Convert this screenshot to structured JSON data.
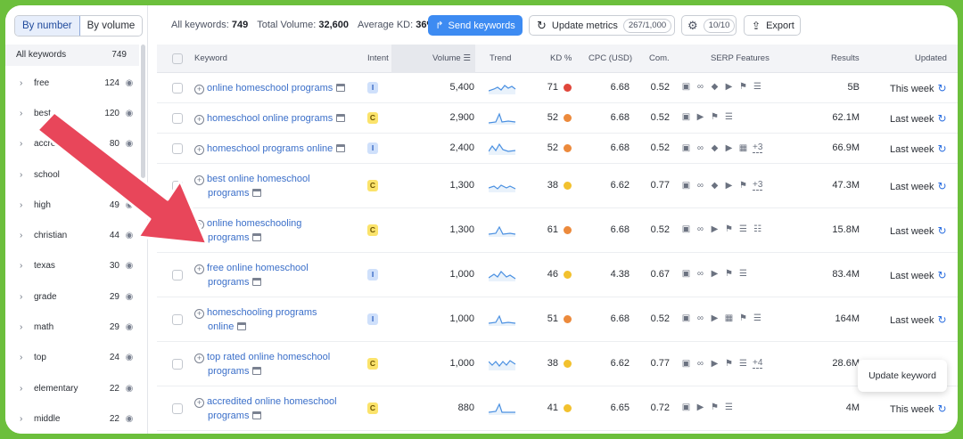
{
  "sidebar": {
    "toggle": [
      "By number",
      "By volume"
    ],
    "header_label": "All keywords",
    "header_count": "749",
    "items": [
      {
        "label": "free",
        "count": "124"
      },
      {
        "label": "best",
        "count": "120"
      },
      {
        "label": "accredited",
        "count": "80"
      },
      {
        "label": "school",
        "count": ""
      },
      {
        "label": "high",
        "count": "49"
      },
      {
        "label": "christian",
        "count": "44"
      },
      {
        "label": "texas",
        "count": "30"
      },
      {
        "label": "grade",
        "count": "29"
      },
      {
        "label": "math",
        "count": "29"
      },
      {
        "label": "top",
        "count": "24"
      },
      {
        "label": "elementary",
        "count": "22"
      },
      {
        "label": "middle",
        "count": "22"
      }
    ]
  },
  "topbar": {
    "all_keywords_label": "All keywords:",
    "all_keywords_value": "749",
    "total_volume_label": "Total Volume:",
    "total_volume_value": "32,600",
    "avg_kd_label": "Average KD:",
    "avg_kd_value": "36%",
    "send_label": "Send keywords",
    "update_label": "Update metrics",
    "update_badge": "267/1,000",
    "gear_badge": "10/10",
    "export_label": "Export"
  },
  "columns": [
    "Keyword",
    "Intent",
    "Volume",
    "Trend",
    "KD %",
    "CPC (USD)",
    "Com.",
    "SERP Features",
    "Results",
    "Updated"
  ],
  "colors": {
    "accent": "#3d8bf2",
    "frame": "#6cbf3c",
    "arrow": "#e8465a",
    "kd_red": "#e0473b",
    "kd_orange": "#ec8a3c",
    "kd_yellow": "#f2c12e"
  },
  "rows": [
    {
      "kw1": "online homeschool programs",
      "kw2": "",
      "intent": "I",
      "volume": "5,400",
      "kd": "71",
      "kd_color": "#e0473b",
      "cpc": "6.68",
      "com": "0.52",
      "serp": "square,link,diamond,play,flag,list",
      "more": "",
      "results": "5B",
      "updated": "This week"
    },
    {
      "kw1": "homeschool online programs",
      "kw2": "",
      "intent": "C",
      "volume": "2,900",
      "kd": "52",
      "kd_color": "#ec8a3c",
      "cpc": "6.68",
      "com": "0.52",
      "serp": "square,play,flag,list",
      "more": "",
      "results": "62.1M",
      "updated": "Last week"
    },
    {
      "kw1": "homeschool programs online",
      "kw2": "",
      "intent": "I",
      "volume": "2,400",
      "kd": "52",
      "kd_color": "#ec8a3c",
      "cpc": "6.68",
      "com": "0.52",
      "serp": "square,link,diamond,play,video",
      "more": "+3",
      "results": "66.9M",
      "updated": "Last week"
    },
    {
      "kw1": "best online homeschool",
      "kw2": "programs",
      "intent": "C",
      "volume": "1,300",
      "kd": "38",
      "kd_color": "#f2c12e",
      "cpc": "6.62",
      "com": "0.77",
      "serp": "square,link,diamond,play,flag",
      "more": "+3",
      "results": "47.3M",
      "updated": "Last week"
    },
    {
      "kw1": "online homeschooling",
      "kw2": "programs",
      "intent": "C",
      "volume": "1,300",
      "kd": "61",
      "kd_color": "#ec8a3c",
      "cpc": "6.68",
      "com": "0.52",
      "serp": "square,link,play,flag,list,doc",
      "more": "",
      "results": "15.8M",
      "updated": "Last week"
    },
    {
      "kw1": "free online homeschool",
      "kw2": "programs",
      "intent": "I",
      "volume": "1,000",
      "kd": "46",
      "kd_color": "#f2c12e",
      "cpc": "4.38",
      "com": "0.67",
      "serp": "square,link,play,flag,list",
      "more": "",
      "results": "83.4M",
      "updated": "Last week"
    },
    {
      "kw1": "homeschooling programs",
      "kw2": "online",
      "intent": "I",
      "volume": "1,000",
      "kd": "51",
      "kd_color": "#ec8a3c",
      "cpc": "6.68",
      "com": "0.52",
      "serp": "square,link,play,video,flag,list",
      "more": "",
      "results": "164M",
      "updated": "Last week"
    },
    {
      "kw1": "top rated online homeschool",
      "kw2": "programs",
      "intent": "C",
      "volume": "1,000",
      "kd": "38",
      "kd_color": "#f2c12e",
      "cpc": "6.62",
      "com": "0.77",
      "serp": "square,link,play,flag,list",
      "more": "+4",
      "results": "28.6M",
      "updated": "Last week"
    },
    {
      "kw1": "accredited online homeschool",
      "kw2": "programs",
      "intent": "C",
      "volume": "880",
      "kd": "41",
      "kd_color": "#f2c12e",
      "cpc": "6.65",
      "com": "0.72",
      "serp": "square,play,flag,list",
      "more": "",
      "results": "4M",
      "updated": "This week"
    }
  ],
  "tooltip": "Update keyword"
}
